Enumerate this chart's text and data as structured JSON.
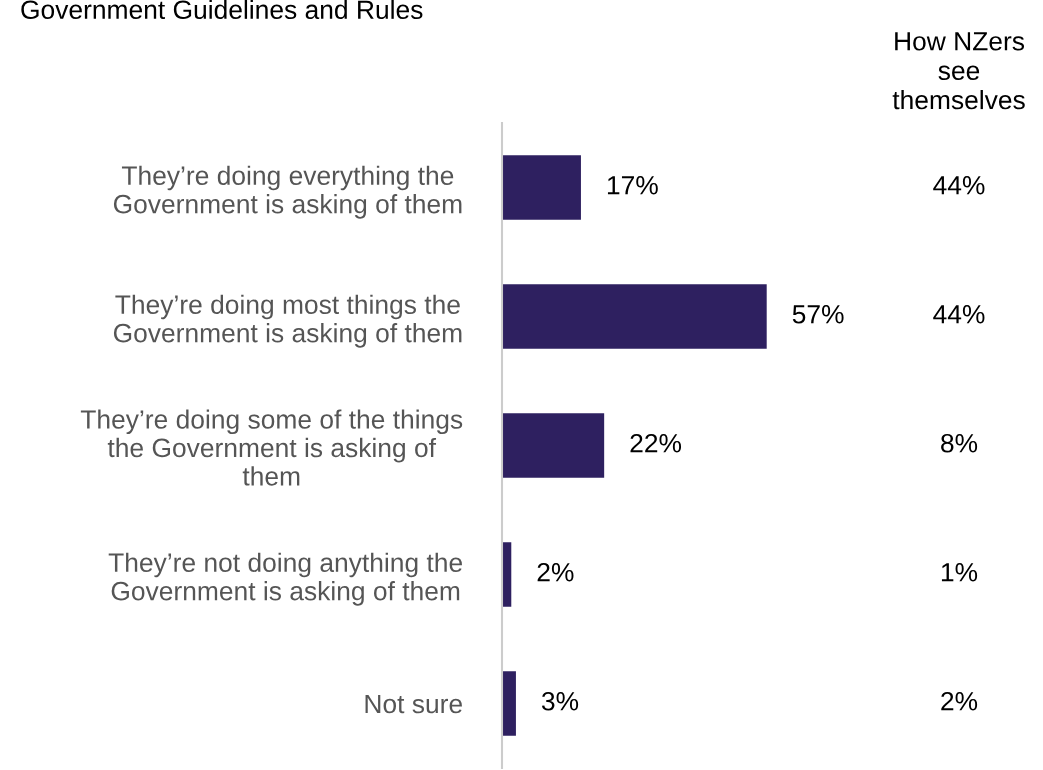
{
  "chart_data": [
    {
      "type": "bar",
      "orientation": "horizontal",
      "title": "Government Guidelines and Rules",
      "categories": [
        "They’re doing everything the\nGovernment is asking of them",
        "They’re doing most things the\nGovernment is asking of them",
        "They’re doing some of the things\nthe Government is asking of\nthem",
        "They’re not doing anything the\nGovernment is asking of them",
        "Not sure"
      ],
      "values": [
        17,
        57,
        22,
        2,
        3
      ],
      "value_labels": [
        "17%",
        "57%",
        "22%",
        "2%",
        "3%"
      ],
      "color": "#2e2060"
    },
    {
      "type": "other",
      "title": "How NZers\nsee\nthemselves",
      "annotations": [
        "44%",
        "44%",
        "8%",
        "1%",
        "2%"
      ]
    }
  ]
}
